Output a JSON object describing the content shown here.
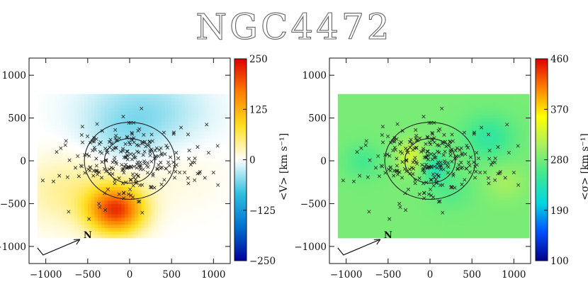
{
  "chart_data": [
    {
      "type": "heatmap",
      "quantity": "velocity",
      "title": "NGC4472",
      "xlim": [
        -1200,
        1200
      ],
      "ylim": [
        -1200,
        1200
      ],
      "xticks": [
        -1000,
        -500,
        0,
        500,
        1000
      ],
      "yticks": [
        -1000,
        -500,
        0,
        500,
        1000
      ],
      "x_tick_labels": [
        "−1000",
        "−500",
        "0",
        "500",
        "1000"
      ],
      "y_tick_labels": [
        "1000",
        "500",
        "0",
        "−500",
        "−1000"
      ],
      "data_extent": {
        "x": [
          -1100,
          1180
        ],
        "y": [
          -900,
          780
        ]
      },
      "colorbar": {
        "label": "<V> [km s⁻¹]",
        "range": [
          -250,
          250
        ],
        "ticks": [
          250,
          125,
          0,
          -125,
          -250
        ],
        "tick_labels": [
          "250",
          "125",
          "0",
          "−125",
          "−250"
        ],
        "colormap": "diverging blue-white-red",
        "colors": [
          "#00009a",
          "#0070d0",
          "#30c0e0",
          "#ffffff",
          "#ffe020",
          "#ff8000",
          "#dd0000"
        ]
      },
      "features": [
        {
          "name": "positive lobe",
          "x": -180,
          "y": -560,
          "value": 200
        },
        {
          "name": "negative lobe",
          "x": 150,
          "y": 560,
          "value": -45
        },
        {
          "name": "central",
          "x": 0,
          "y": 0,
          "value": 0
        }
      ],
      "isophotes": [
        {
          "a": 300,
          "b": 260
        },
        {
          "a": 540,
          "b": 450
        }
      ],
      "compass": {
        "label": "N"
      }
    },
    {
      "type": "heatmap",
      "quantity": "dispersion",
      "xlim": [
        -1200,
        1200
      ],
      "ylim": [
        -1200,
        1200
      ],
      "xticks": [
        -1000,
        -500,
        0,
        500,
        1000
      ],
      "yticks": [
        -1000,
        -500,
        0,
        500,
        1000
      ],
      "x_tick_labels": [
        "−1000",
        "−500",
        "0",
        "500",
        "1000"
      ],
      "y_tick_labels": [
        "1000",
        "500",
        "0",
        "−500",
        "−1000"
      ],
      "data_extent": {
        "x": [
          -1100,
          1180
        ],
        "y": [
          -900,
          780
        ]
      },
      "colorbar": {
        "label": "<σ> [km s⁻¹]",
        "range": [
          100,
          460
        ],
        "ticks": [
          460,
          370,
          280,
          190,
          100
        ],
        "tick_labels": [
          "460",
          "370",
          "280",
          "190",
          "100"
        ],
        "colormap": "jet",
        "colors": [
          "#00008a",
          "#0050ff",
          "#00d8e0",
          "#40e890",
          "#a8f060",
          "#ffff00",
          "#ff8000",
          "#e00000"
        ]
      },
      "features": [
        {
          "name": "high-dispersion spot",
          "x": -230,
          "y": 50,
          "value": 330
        },
        {
          "name": "low-dispersion spot",
          "x": 60,
          "y": -80,
          "value": 230
        },
        {
          "name": "low-dispersion arm",
          "x": 700,
          "y": 280,
          "value": 245
        },
        {
          "name": "background",
          "x": 0,
          "y": 500,
          "value": 280
        }
      ],
      "isophotes": [
        {
          "a": 300,
          "b": 260
        },
        {
          "a": 540,
          "b": 450
        }
      ],
      "compass": {
        "label": "N"
      }
    }
  ],
  "colors": {
    "axis": "#111111",
    "title_outline": "#666666",
    "marker": "#222222"
  },
  "page_title": "NGC4472"
}
